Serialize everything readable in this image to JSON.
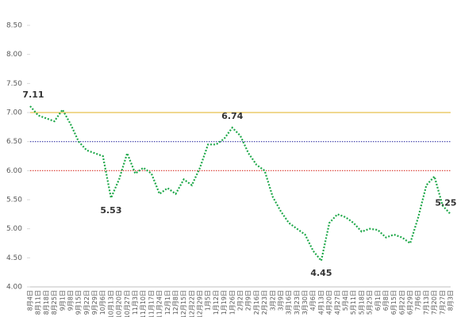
{
  "chart_data": {
    "type": "line",
    "categories": [
      "8月4日",
      "8月11日",
      "8月18日",
      "8月25日",
      "9月1日",
      "9月8日",
      "9月15日",
      "9月22日",
      "9月29日",
      "10月6日",
      "10月13日",
      "10月20日",
      "10月27日",
      "11月3日",
      "11月10日",
      "11月17日",
      "11月24日",
      "12月1日",
      "12月8日",
      "12月15日",
      "12月22日",
      "12月29日",
      "1月5日",
      "1月12日",
      "1月19日",
      "1月26日",
      "2月2日",
      "2月9日",
      "2月16日",
      "2月23日",
      "3月2日",
      "3月9日",
      "3月16日",
      "3月23日",
      "3月30日",
      "4月6日",
      "4月13日",
      "4月20日",
      "4月27日",
      "5月4日",
      "5月11日",
      "5月18日",
      "5月25日",
      "6月1日",
      "6月8日",
      "6月15日",
      "6月22日",
      "6月29日",
      "7月6日",
      "7月13日",
      "7月20日",
      "7月27日",
      "8月3日"
    ],
    "series": [
      {
        "color": "#1fa84a",
        "values": [
          7.11,
          6.95,
          6.9,
          6.85,
          7.05,
          6.8,
          6.5,
          6.35,
          6.3,
          6.25,
          5.53,
          5.85,
          6.3,
          5.95,
          6.05,
          5.95,
          5.6,
          5.7,
          5.6,
          5.85,
          5.75,
          6.05,
          6.45,
          6.45,
          6.55,
          6.74,
          6.6,
          6.3,
          6.1,
          6.0,
          5.55,
          5.3,
          5.1,
          5.0,
          4.9,
          4.62,
          4.45,
          5.1,
          5.25,
          5.2,
          5.1,
          4.95,
          5.0,
          4.98,
          4.85,
          4.9,
          4.85,
          4.75,
          5.2,
          5.75,
          5.9,
          5.4,
          5.25
        ]
      }
    ],
    "labeled_points": [
      0,
      10,
      25,
      36,
      52
    ],
    "reference_lines": [
      {
        "value": 7,
        "color": "#e6c14d"
      },
      {
        "value": 6.5,
        "color": "#3a3aa8"
      },
      {
        "value": 6,
        "color": "#d9352b"
      }
    ],
    "ylim": [
      4,
      8.5
    ],
    "yticks": [
      {
        "value": 4,
        "label": "4.00"
      },
      {
        "value": 4.5,
        "label": "4.50"
      },
      {
        "value": 5,
        "label": "5.00"
      },
      {
        "value": 5.5,
        "label": "5.50"
      },
      {
        "value": 6,
        "label": "6.00"
      },
      {
        "value": 6.5,
        "label": "6.50"
      },
      {
        "value": 7,
        "label": "7.00"
      },
      {
        "value": 7.5,
        "label": "7.50"
      },
      {
        "value": 8,
        "label": "8.00"
      },
      {
        "value": 8.5,
        "label": "8.50"
      }
    ],
    "grid": false
  }
}
